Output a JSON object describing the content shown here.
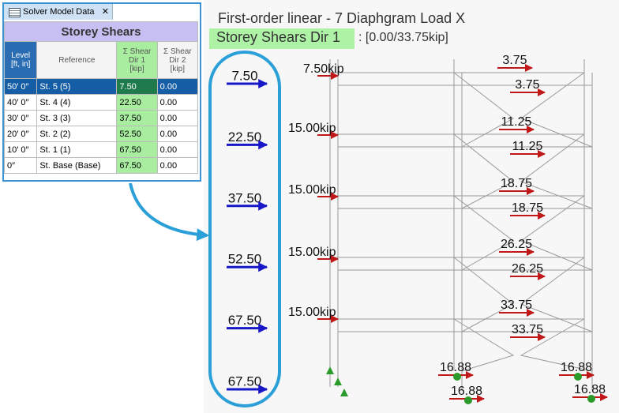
{
  "panel": {
    "tab": "Solver Model Data",
    "tab_close": "✕",
    "title": "Storey Shears",
    "columns": [
      "Level\n[ft, in]",
      "Reference",
      "Σ Shear\nDir 1\n[kip]",
      "Σ Shear\nDir 2\n[kip]"
    ],
    "rows": [
      [
        "50′ 0″",
        "St. 5 (5)",
        "7.50",
        "0.00"
      ],
      [
        "40′ 0″",
        "St. 4 (4)",
        "22.50",
        "0.00"
      ],
      [
        "30′ 0″",
        "St. 3 (3)",
        "37.50",
        "0.00"
      ],
      [
        "20′ 0″",
        "St. 2 (2)",
        "52.50",
        "0.00"
      ],
      [
        "10′ 0″",
        "St. 1 (1)",
        "67.50",
        "0.00"
      ],
      [
        "0″",
        "St. Base (Base)",
        "67.50",
        "0.00"
      ]
    ]
  },
  "viewport": {
    "title": "First-order linear - 7 Diaphgram Load X",
    "result_label": "Storey Shears Dir 1",
    "result_range": ": [0.00/33.75kip]",
    "storey_totals": [
      "7.50",
      "22.50",
      "37.50",
      "52.50",
      "67.50",
      "67.50"
    ],
    "applied_loads": [
      "7.50kip",
      "15.00kip",
      "15.00kip",
      "15.00kip",
      "15.00kip"
    ],
    "member_labels": [
      "3.75",
      "3.75",
      "11.25",
      "11.25",
      "18.75",
      "18.75",
      "26.25",
      "26.25",
      "33.75",
      "33.75",
      "16.88",
      "16.88",
      "16.88",
      "16.88"
    ]
  }
}
